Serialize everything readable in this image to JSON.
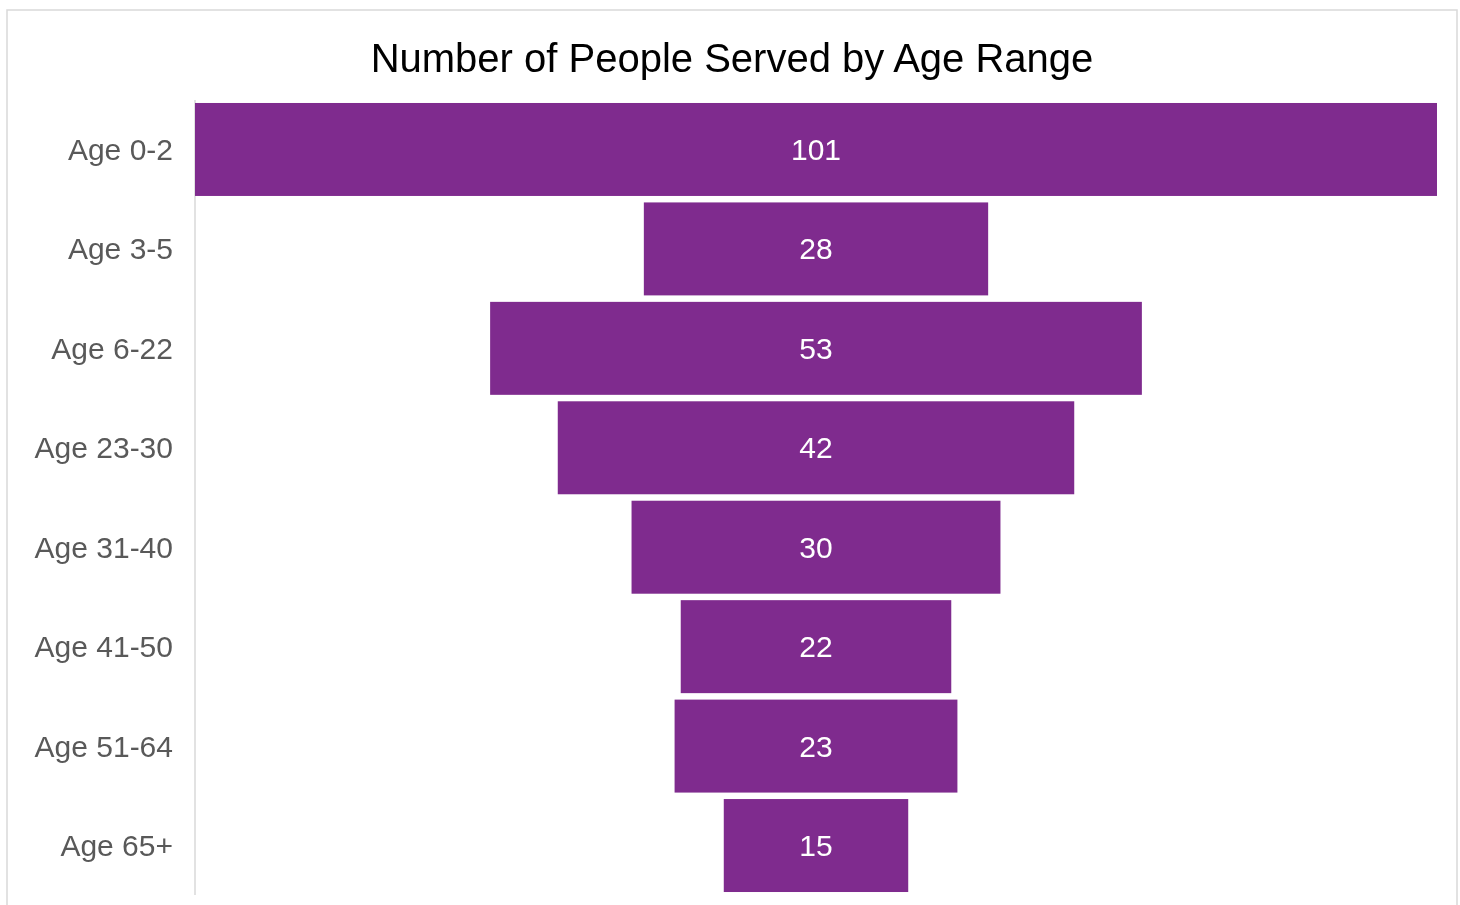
{
  "chart_data": {
    "type": "other",
    "title": "Number of People Served by Age Range",
    "categories": [
      "Age 0-2",
      "Age 3-5",
      "Age 6-22",
      "Age 23-30",
      "Age 31-40",
      "Age 41-50",
      "Age 51-64",
      "Age 65+"
    ],
    "values": [
      101,
      28,
      53,
      42,
      30,
      22,
      23,
      15
    ],
    "color": "#7f2b8e",
    "data_labels": true
  }
}
